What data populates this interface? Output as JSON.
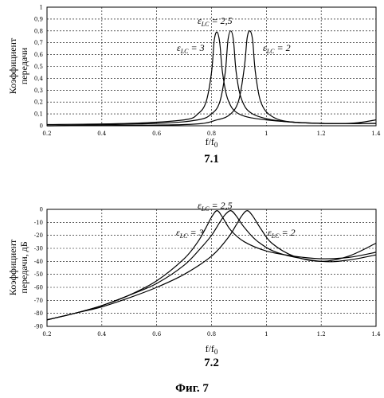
{
  "figure_caption": "Фиг. 7",
  "chart_data": [
    {
      "type": "line",
      "panel_label": "7.1",
      "xlabel": "f/f0",
      "ylabel": "Коэффициент передачи",
      "xlim": [
        0.2,
        1.4
      ],
      "ylim": [
        0,
        1
      ],
      "xticks": [
        "0.2",
        "0.4",
        "0.6",
        "0.8",
        "1",
        "1.2",
        "1.4"
      ],
      "yticks": [
        "0",
        "0,1",
        "0,2",
        "0,3",
        "0,4",
        "0,5",
        "0,6",
        "0,7",
        "0,8",
        "0,9",
        "1"
      ],
      "grid": true,
      "series": [
        {
          "name": "εLC = 3",
          "x": [
            0.2,
            0.5,
            0.7,
            0.75,
            0.78,
            0.8,
            0.81,
            0.82,
            0.83,
            0.84,
            0.86,
            0.9,
            1.0,
            1.2,
            1.4
          ],
          "y": [
            0.01,
            0.02,
            0.05,
            0.1,
            0.2,
            0.45,
            0.72,
            0.79,
            0.7,
            0.45,
            0.22,
            0.1,
            0.05,
            0.02,
            0.02
          ]
        },
        {
          "name": "εLC = 2,5",
          "x": [
            0.2,
            0.6,
            0.75,
            0.8,
            0.83,
            0.85,
            0.86,
            0.87,
            0.88,
            0.89,
            0.91,
            0.95,
            1.05,
            1.2,
            1.4
          ],
          "y": [
            0.0,
            0.02,
            0.05,
            0.1,
            0.2,
            0.45,
            0.72,
            0.8,
            0.72,
            0.45,
            0.22,
            0.1,
            0.04,
            0.02,
            0.02
          ]
        },
        {
          "name": "εLC = 2",
          "x": [
            0.2,
            0.7,
            0.82,
            0.87,
            0.9,
            0.92,
            0.93,
            0.94,
            0.95,
            0.96,
            0.98,
            1.02,
            1.1,
            1.3,
            1.4
          ],
          "y": [
            0.0,
            0.01,
            0.05,
            0.1,
            0.22,
            0.5,
            0.74,
            0.8,
            0.72,
            0.45,
            0.2,
            0.08,
            0.03,
            0.02,
            0.05
          ]
        }
      ]
    },
    {
      "type": "line",
      "panel_label": "7.2",
      "xlabel": "f/f0",
      "ylabel": "Коэффициент передачи, дБ",
      "xlim": [
        0.2,
        1.4
      ],
      "ylim": [
        -90,
        0
      ],
      "xticks": [
        "0.2",
        "0.4",
        "0.6",
        "0.8",
        "1",
        "1.2",
        "1.4"
      ],
      "yticks": [
        "0",
        "-10",
        "-20",
        "-30",
        "-40",
        "-50",
        "-60",
        "-70",
        "-80",
        "-90"
      ],
      "grid": true,
      "series": [
        {
          "name": "εLC = 3",
          "x": [
            0.2,
            0.3,
            0.4,
            0.5,
            0.6,
            0.7,
            0.75,
            0.78,
            0.8,
            0.82,
            0.84,
            0.87,
            0.92,
            1.0,
            1.1,
            1.2,
            1.3,
            1.4
          ],
          "y": [
            -85,
            -80,
            -74,
            -66,
            -55,
            -38,
            -25,
            -14,
            -6,
            -1,
            -6,
            -16,
            -25,
            -32,
            -36,
            -38,
            -37,
            -33
          ]
        },
        {
          "name": "εLC = 2,5",
          "x": [
            0.2,
            0.3,
            0.4,
            0.5,
            0.6,
            0.7,
            0.76,
            0.8,
            0.83,
            0.85,
            0.87,
            0.89,
            0.92,
            0.97,
            1.05,
            1.2,
            1.3,
            1.4
          ],
          "y": [
            -85,
            -80,
            -74,
            -66,
            -57,
            -43,
            -30,
            -20,
            -10,
            -4,
            -1,
            -5,
            -14,
            -25,
            -34,
            -40,
            -39,
            -35
          ]
        },
        {
          "name": "εLC = 2",
          "x": [
            0.2,
            0.3,
            0.4,
            0.5,
            0.6,
            0.7,
            0.8,
            0.86,
            0.89,
            0.91,
            0.93,
            0.95,
            0.98,
            1.02,
            1.1,
            1.2,
            1.3,
            1.4
          ],
          "y": [
            -85,
            -80,
            -75,
            -68,
            -60,
            -50,
            -36,
            -22,
            -12,
            -5,
            -1,
            -5,
            -15,
            -26,
            -36,
            -40,
            -36,
            -26
          ]
        }
      ]
    }
  ]
}
